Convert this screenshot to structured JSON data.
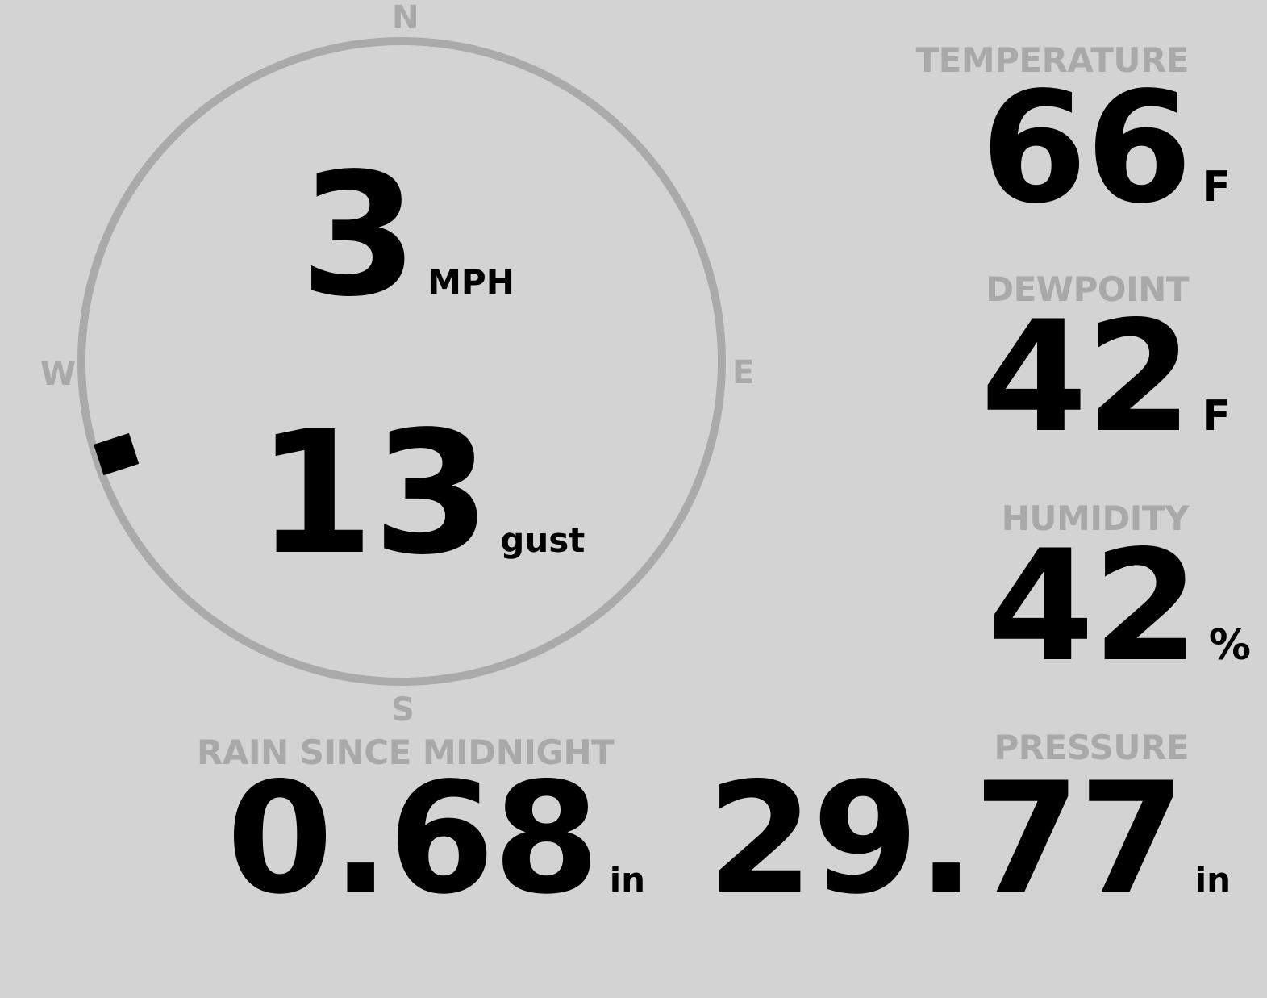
{
  "colors": {
    "background": "#d3d3d3",
    "label": "#a9a9a9",
    "value": "#000000",
    "ring": "#aaaaaa"
  },
  "wind": {
    "compass": {
      "n": "N",
      "e": "E",
      "s": "S",
      "w": "W"
    },
    "direction_degrees": 252,
    "speed": "3",
    "speed_unit": "MPH",
    "gust": "13",
    "gust_unit": "gust"
  },
  "rain": {
    "label": "RAIN SINCE MIDNIGHT",
    "value": "0.68",
    "unit": "in"
  },
  "temperature": {
    "label": "TEMPERATURE",
    "value": "66",
    "unit": "F"
  },
  "dewpoint": {
    "label": "DEWPOINT",
    "value": "42",
    "unit": "F"
  },
  "humidity": {
    "label": "HUMIDITY",
    "value": "42",
    "unit": "%"
  },
  "pressure": {
    "label": "PRESSURE",
    "value": "29.77",
    "unit": "in"
  }
}
